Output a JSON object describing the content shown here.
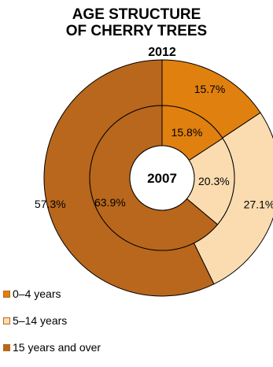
{
  "title_line1": "AGE STRUCTURE",
  "title_line2": "OF CHERRY TREES",
  "chart_data": {
    "type": "pie",
    "subtype": "nested-donut",
    "categories": [
      "0–4 years",
      "5–14 years",
      "15 years and over"
    ],
    "colors": [
      "#e0800f",
      "#fbdcb0",
      "#b9671c"
    ],
    "series": [
      {
        "name": "2012",
        "ring": "outer",
        "values": [
          15.7,
          27.1,
          57.3
        ],
        "labels": [
          "15.7%",
          "27.1%",
          "57.3%"
        ]
      },
      {
        "name": "2007",
        "ring": "inner",
        "values": [
          15.8,
          20.3,
          63.9
        ],
        "labels": [
          "15.8%",
          "20.3%",
          "63.9%"
        ]
      }
    ],
    "legend": "bottom-left"
  }
}
